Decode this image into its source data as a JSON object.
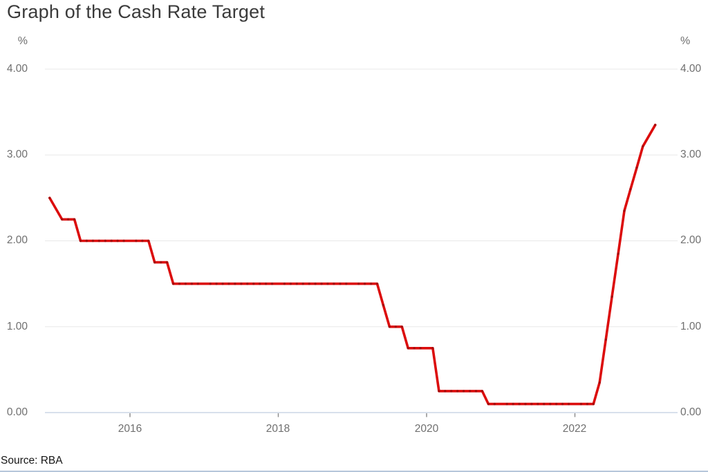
{
  "title": "Graph of the Cash Rate Target",
  "source": "Source: RBA",
  "chart_data": {
    "type": "line",
    "title": "Graph of the Cash Rate Target",
    "series_name": "Cash Rate Target",
    "y_unit": "%",
    "ylim": [
      0,
      4
    ],
    "grid": true,
    "legend": "none",
    "y_tick_values": [
      4,
      3,
      2,
      1,
      0
    ],
    "y_tick_labels": [
      "4.00",
      "3.00",
      "2.00",
      "1.00",
      "0.00"
    ],
    "x_tick_values": [
      2016,
      2018,
      2020,
      2022
    ],
    "x_tick_labels": [
      "2016",
      "2018",
      "2020",
      "2022"
    ],
    "line_color": "#dc0c0c",
    "dot_color": "#a50d0d",
    "grid_color": "#e8e8e8",
    "zero_axis_color": "#d8e0ec",
    "tick_color": "#8f8f8f",
    "points": [
      [
        "2014-12",
        2.5
      ],
      [
        "2015-02",
        2.25
      ],
      [
        "2015-03",
        2.25
      ],
      [
        "2015-04",
        2.25
      ],
      [
        "2015-05",
        2.0
      ],
      [
        "2015-06",
        2.0
      ],
      [
        "2015-07",
        2.0
      ],
      [
        "2015-08",
        2.0
      ],
      [
        "2015-09",
        2.0
      ],
      [
        "2015-10",
        2.0
      ],
      [
        "2015-11",
        2.0
      ],
      [
        "2015-12",
        2.0
      ],
      [
        "2016-02",
        2.0
      ],
      [
        "2016-03",
        2.0
      ],
      [
        "2016-04",
        2.0
      ],
      [
        "2016-05",
        1.75
      ],
      [
        "2016-06",
        1.75
      ],
      [
        "2016-07",
        1.75
      ],
      [
        "2016-08",
        1.5
      ],
      [
        "2016-09",
        1.5
      ],
      [
        "2016-10",
        1.5
      ],
      [
        "2016-11",
        1.5
      ],
      [
        "2016-12",
        1.5
      ],
      [
        "2017-02",
        1.5
      ],
      [
        "2017-03",
        1.5
      ],
      [
        "2017-04",
        1.5
      ],
      [
        "2017-05",
        1.5
      ],
      [
        "2017-06",
        1.5
      ],
      [
        "2017-07",
        1.5
      ],
      [
        "2017-08",
        1.5
      ],
      [
        "2017-09",
        1.5
      ],
      [
        "2017-10",
        1.5
      ],
      [
        "2017-11",
        1.5
      ],
      [
        "2017-12",
        1.5
      ],
      [
        "2018-02",
        1.5
      ],
      [
        "2018-03",
        1.5
      ],
      [
        "2018-04",
        1.5
      ],
      [
        "2018-05",
        1.5
      ],
      [
        "2018-06",
        1.5
      ],
      [
        "2018-07",
        1.5
      ],
      [
        "2018-08",
        1.5
      ],
      [
        "2018-09",
        1.5
      ],
      [
        "2018-10",
        1.5
      ],
      [
        "2018-11",
        1.5
      ],
      [
        "2018-12",
        1.5
      ],
      [
        "2019-02",
        1.5
      ],
      [
        "2019-03",
        1.5
      ],
      [
        "2019-04",
        1.5
      ],
      [
        "2019-05",
        1.5
      ],
      [
        "2019-06",
        1.25
      ],
      [
        "2019-07",
        1.0
      ],
      [
        "2019-08",
        1.0
      ],
      [
        "2019-09",
        1.0
      ],
      [
        "2019-10",
        0.75
      ],
      [
        "2019-11",
        0.75
      ],
      [
        "2019-12",
        0.75
      ],
      [
        "2020-02",
        0.75
      ],
      [
        "2020-03",
        0.25
      ],
      [
        "2020-04",
        0.25
      ],
      [
        "2020-05",
        0.25
      ],
      [
        "2020-06",
        0.25
      ],
      [
        "2020-07",
        0.25
      ],
      [
        "2020-08",
        0.25
      ],
      [
        "2020-09",
        0.25
      ],
      [
        "2020-10",
        0.25
      ],
      [
        "2020-11",
        0.1
      ],
      [
        "2020-12",
        0.1
      ],
      [
        "2021-02",
        0.1
      ],
      [
        "2021-03",
        0.1
      ],
      [
        "2021-04",
        0.1
      ],
      [
        "2021-05",
        0.1
      ],
      [
        "2021-06",
        0.1
      ],
      [
        "2021-07",
        0.1
      ],
      [
        "2021-08",
        0.1
      ],
      [
        "2021-09",
        0.1
      ],
      [
        "2021-10",
        0.1
      ],
      [
        "2021-11",
        0.1
      ],
      [
        "2021-12",
        0.1
      ],
      [
        "2022-02",
        0.1
      ],
      [
        "2022-03",
        0.1
      ],
      [
        "2022-04",
        0.1
      ],
      [
        "2022-05",
        0.35
      ],
      [
        "2022-06",
        0.85
      ],
      [
        "2022-07",
        1.35
      ],
      [
        "2022-08",
        1.85
      ],
      [
        "2022-09",
        2.35
      ],
      [
        "2022-10",
        2.6
      ],
      [
        "2022-11",
        2.85
      ],
      [
        "2022-12",
        3.1
      ],
      [
        "2023-02",
        3.35
      ]
    ]
  }
}
